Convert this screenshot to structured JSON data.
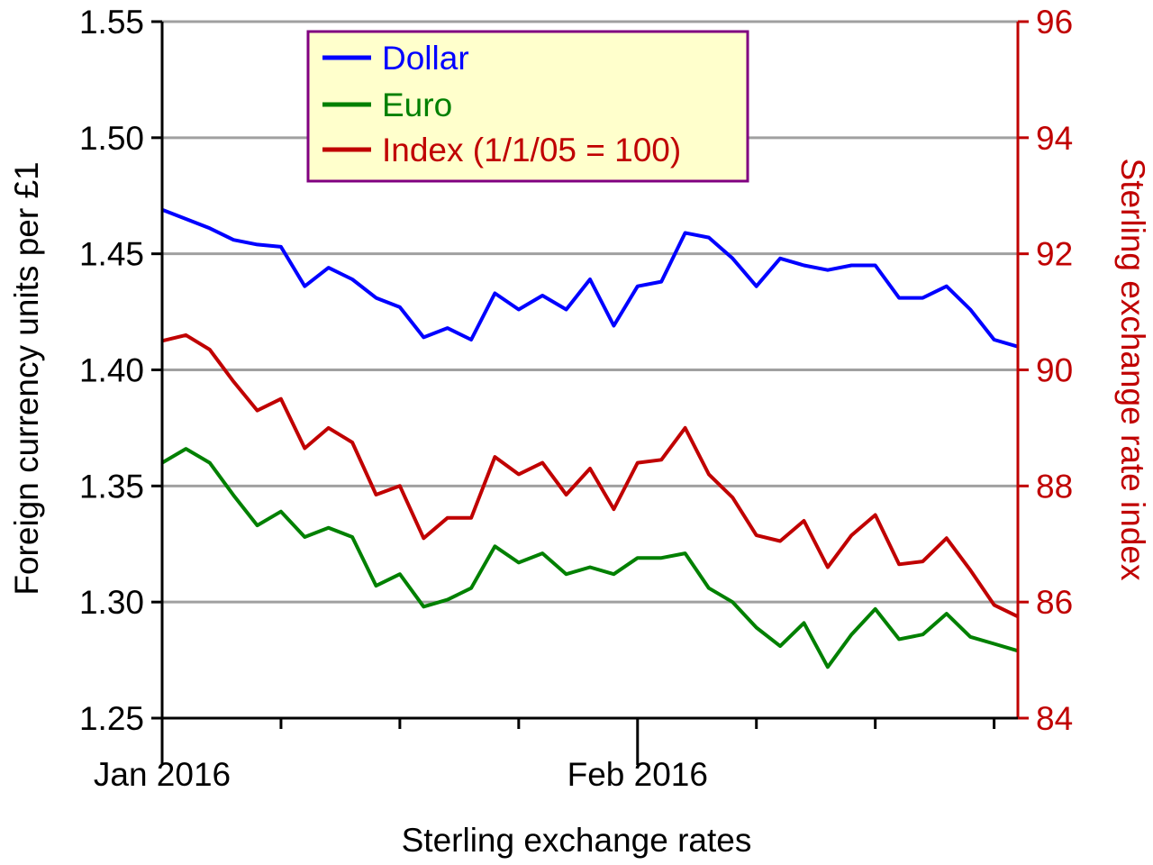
{
  "chart_data": {
    "type": "line",
    "title": "",
    "xlabel": "Sterling exchange rates",
    "ylabel_left": "Foreign currency units per £1",
    "ylabel_right": "Sterling exchange rate index",
    "x_tick_labels": [
      "Jan 2016",
      "Feb 2016"
    ],
    "ylim_left": [
      1.25,
      1.55
    ],
    "yticks_left": [
      "1.25",
      "1.30",
      "1.35",
      "1.40",
      "1.45",
      "1.50",
      "1.55"
    ],
    "ylim_right": [
      84,
      96
    ],
    "yticks_right": [
      "84",
      "86",
      "88",
      "90",
      "92",
      "94",
      "96"
    ],
    "grid": true,
    "legend_position": "top-left",
    "colors": {
      "dollar": "#0000ff",
      "euro": "#008000",
      "index": "#c00000",
      "axis_left": "#000000",
      "axis_right": "#c00000",
      "grid": "#a0a0a0",
      "legend_bg": "#ffffcc",
      "legend_border": "#800080"
    },
    "series": [
      {
        "name": "Dollar",
        "axis": "left",
        "values": [
          1.469,
          1.465,
          1.461,
          1.456,
          1.454,
          1.453,
          1.436,
          1.444,
          1.439,
          1.431,
          1.427,
          1.414,
          1.418,
          1.413,
          1.433,
          1.426,
          1.432,
          1.426,
          1.439,
          1.419,
          1.436,
          1.438,
          1.459,
          1.457,
          1.448,
          1.436,
          1.448,
          1.445,
          1.443,
          1.445,
          1.445,
          1.431,
          1.431,
          1.436,
          1.426,
          1.413,
          1.41
        ]
      },
      {
        "name": "Euro",
        "axis": "left",
        "values": [
          1.36,
          1.366,
          1.36,
          1.346,
          1.333,
          1.339,
          1.328,
          1.332,
          1.328,
          1.307,
          1.312,
          1.298,
          1.301,
          1.306,
          1.324,
          1.317,
          1.321,
          1.312,
          1.315,
          1.312,
          1.319,
          1.319,
          1.321,
          1.306,
          1.3,
          1.289,
          1.281,
          1.291,
          1.272,
          1.286,
          1.297,
          1.284,
          1.286,
          1.295,
          1.285,
          1.282,
          1.279
        ]
      },
      {
        "name": "Index (1/1/05 = 100)",
        "axis": "right",
        "values": [
          90.5,
          90.6,
          90.35,
          89.8,
          89.3,
          89.5,
          88.65,
          89.0,
          88.75,
          87.85,
          88.0,
          87.1,
          87.45,
          87.45,
          88.5,
          88.2,
          88.4,
          87.85,
          88.3,
          87.6,
          88.4,
          88.45,
          89.0,
          88.2,
          87.8,
          87.15,
          87.05,
          87.4,
          86.6,
          87.15,
          87.5,
          86.65,
          86.7,
          87.1,
          86.55,
          85.95,
          85.75
        ]
      }
    ]
  }
}
